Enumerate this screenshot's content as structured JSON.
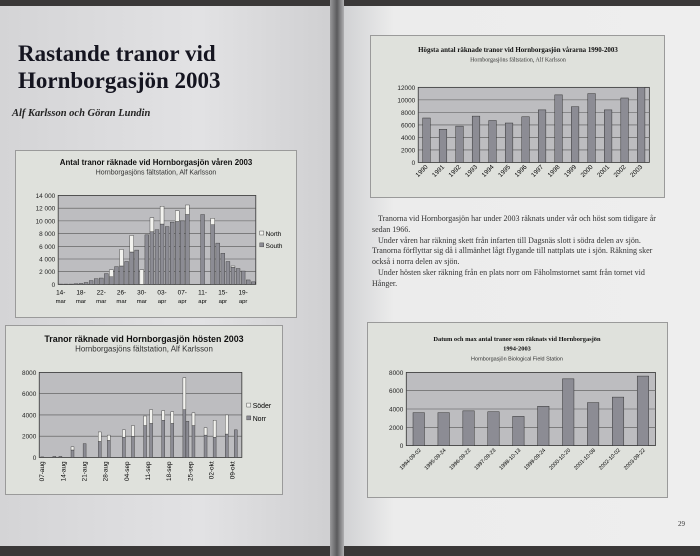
{
  "article": {
    "title_line1": "Rastande tranor vid",
    "title_line2": "Hornborgasjön 2003",
    "authors": "Alf Karlsson och Göran Lundin"
  },
  "body_paragraphs": [
    "Tranorna vid Hornborgasjön har under 2003 räknats under vår och höst som tidigare år sedan 1966.",
    "Under våren har räkning skett från infarten till Dagsnäs slott i södra delen av sjön. Tranorna förflyttar sig då i allmänhet lågt flygande till nattplats ute i sjön. Räkning sker också i norra delen av sjön.",
    "Under hösten sker räkning från en plats norr om Fäholmstornet samt från tornet vid Hånger."
  ],
  "page_number": "29",
  "colors": {
    "bar_dark": "#8c8c94",
    "bar_light": "#f2f2ee",
    "plot_bg": "#bdbdc0",
    "frame_bg": "#dfe1dc"
  },
  "chart_data": [
    {
      "id": "spring",
      "type": "bar",
      "stacked": true,
      "title": "Antal tranor räknade vid Hornborgasjön våren 2003",
      "subtitle": "Hornborgasjöns fältstation, Alf Karlsson",
      "ylim": [
        0,
        14000
      ],
      "yticks": [
        "0",
        "2 000",
        "4 000",
        "6 000",
        "8 000",
        "10 000",
        "12 000",
        "14 000"
      ],
      "grid": true,
      "legend": "right",
      "start_date": "2003-03-14",
      "xtick_labels": [
        [
          "14-",
          "mar"
        ],
        [
          "18-",
          "mar"
        ],
        [
          "22-",
          "mar"
        ],
        [
          "26-",
          "mar"
        ],
        [
          "30-",
          "mar"
        ],
        [
          "03-",
          "apr"
        ],
        [
          "07-",
          "apr"
        ],
        [
          "11-",
          "apr"
        ],
        [
          "15-",
          "apr"
        ],
        [
          "19-",
          "apr"
        ]
      ],
      "series": [
        {
          "name": "South",
          "color": "#8c8c94",
          "values": [
            50,
            50,
            50,
            100,
            150,
            300,
            600,
            900,
            1000,
            1700,
            1200,
            2800,
            2900,
            3600,
            5100,
            5400,
            0,
            7800,
            8300,
            8600,
            9500,
            9100,
            9800,
            9900,
            10000,
            11000,
            0,
            0,
            11000,
            0,
            9400,
            6500,
            4900,
            3600,
            2700,
            2500,
            2100,
            700,
            400
          ]
        },
        {
          "name": "North",
          "color": "#f2f2ee",
          "values": [
            0,
            0,
            0,
            0,
            0,
            0,
            0,
            0,
            0,
            0,
            1100,
            0,
            2600,
            0,
            2600,
            0,
            2300,
            0,
            2200,
            0,
            2800,
            0,
            0,
            1700,
            0,
            1500,
            0,
            0,
            0,
            0,
            1000,
            0,
            0,
            0,
            200,
            0,
            0,
            0,
            0
          ]
        }
      ]
    },
    {
      "id": "autumn",
      "type": "bar",
      "stacked": true,
      "title": "Tranor räknade vid Hornborgasjön hösten 2003",
      "subtitle": "Hornborgasjöns fältstation, Alf Karlsson",
      "ylim": [
        0,
        8000
      ],
      "yticks": [
        "0",
        "2000",
        "4000",
        "6000",
        "8000"
      ],
      "grid": true,
      "legend": "right",
      "xtick_labels": [
        "07-aug",
        "14-aug",
        "21-aug",
        "28-aug",
        "04-sep",
        "11-sep",
        "18-sep",
        "25-sep",
        "02-okt",
        "09-okt"
      ],
      "series_names": [
        {
          "name": "Söder",
          "color": "#f2f2ee"
        },
        {
          "name": "Norr",
          "color": "#8c8c94"
        }
      ],
      "points": [
        {
          "date": "2003-08-07",
          "norr": 50,
          "soder": 0
        },
        {
          "date": "2003-08-11",
          "norr": 100,
          "soder": 0
        },
        {
          "date": "2003-08-13",
          "norr": 100,
          "soder": 0
        },
        {
          "date": "2003-08-17",
          "norr": 700,
          "soder": 300
        },
        {
          "date": "2003-08-21",
          "norr": 1300,
          "soder": 0
        },
        {
          "date": "2003-08-26",
          "norr": 1500,
          "soder": 900
        },
        {
          "date": "2003-08-29",
          "norr": 1600,
          "soder": 500
        },
        {
          "date": "2003-09-03",
          "norr": 1900,
          "soder": 700
        },
        {
          "date": "2003-09-06",
          "norr": 2000,
          "soder": 1000
        },
        {
          "date": "2003-09-10",
          "norr": 3000,
          "soder": 900
        },
        {
          "date": "2003-09-12",
          "norr": 3200,
          "soder": 1300
        },
        {
          "date": "2003-09-16",
          "norr": 3500,
          "soder": 900
        },
        {
          "date": "2003-09-19",
          "norr": 3200,
          "soder": 1100
        },
        {
          "date": "2003-09-23",
          "norr": 4500,
          "soder": 3000
        },
        {
          "date": "2003-09-24",
          "norr": 3400,
          "soder": 0
        },
        {
          "date": "2003-09-26",
          "norr": 3000,
          "soder": 1200
        },
        {
          "date": "2003-09-30",
          "norr": 2100,
          "soder": 700
        },
        {
          "date": "2003-10-03",
          "norr": 1900,
          "soder": 1600
        },
        {
          "date": "2003-10-07",
          "norr": 2200,
          "soder": 1800
        },
        {
          "date": "2003-10-10",
          "norr": 2600,
          "soder": 0
        }
      ]
    },
    {
      "id": "yearly",
      "type": "bar",
      "title": "Högsta antal räknade tranor vid Hornborgasjön vårarna 1990-2003",
      "subtitle": "Hornborgasjöns fältstation, Alf Karlsson",
      "ylim": [
        0,
        12000
      ],
      "yticks": [
        "0",
        "2000",
        "4000",
        "6000",
        "8000",
        "10000",
        "12000"
      ],
      "grid": true,
      "categories": [
        "1990",
        "1991",
        "1992",
        "1993",
        "1994",
        "1995",
        "1996",
        "1997",
        "1998",
        "1999",
        "2000",
        "2001",
        "2002",
        "2003"
      ],
      "values": [
        7100,
        5300,
        5800,
        7400,
        6700,
        6300,
        7300,
        8400,
        10800,
        8900,
        11000,
        8400,
        10300,
        12000
      ]
    },
    {
      "id": "dates",
      "type": "bar",
      "title": "Datum och max antal tranor som räknats vid Hornborgasjön",
      "title2": "1994-2003",
      "subtitle": "Hornborgasjön Biological Field Station",
      "ylim": [
        0,
        8000
      ],
      "yticks": [
        "0",
        "2000",
        "4000",
        "6000",
        "8000"
      ],
      "grid": true,
      "categories": [
        "1994-09-02",
        "1995-09-24",
        "1996-09-22",
        "1997-09-23",
        "1998-10-13",
        "1999-09-24",
        "2000-10-20",
        "2001-10-08",
        "2002-10-02",
        "2003-09-22"
      ],
      "values": [
        3600,
        3600,
        3800,
        3700,
        3200,
        4300,
        7300,
        4700,
        5300,
        7600
      ]
    }
  ]
}
